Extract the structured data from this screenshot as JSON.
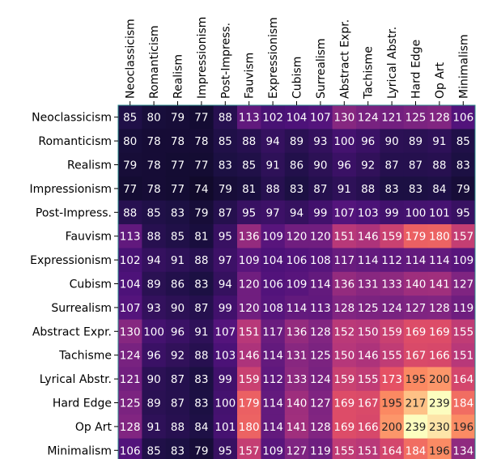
{
  "chart_data": {
    "type": "heatmap",
    "x_labels": [
      "Neoclassicism",
      "Romanticism",
      "Realism",
      "Impressionism",
      "Post-Impress.",
      "Fauvism",
      "Expressionism",
      "Cubism",
      "Surrealism",
      "Abstract Expr.",
      "Tachisme",
      "Lyrical Abstr.",
      "Hard Edge",
      "Op Art",
      "Minimalism"
    ],
    "y_labels": [
      "Neoclassicism",
      "Romanticism",
      "Realism",
      "Impressionism",
      "Post-Impress.",
      "Fauvism",
      "Expressionism",
      "Cubism",
      "Surrealism",
      "Abstract Expr.",
      "Tachisme",
      "Lyrical Abstr.",
      "Hard Edge",
      "Op Art",
      "Minimalism"
    ],
    "values": [
      [
        85,
        80,
        79,
        77,
        88,
        113,
        102,
        104,
        107,
        130,
        124,
        121,
        125,
        128,
        106
      ],
      [
        80,
        78,
        78,
        78,
        85,
        88,
        94,
        89,
        93,
        100,
        96,
        90,
        89,
        91,
        85
      ],
      [
        79,
        78,
        77,
        77,
        83,
        85,
        91,
        86,
        90,
        96,
        92,
        87,
        87,
        88,
        83
      ],
      [
        77,
        78,
        77,
        74,
        79,
        81,
        88,
        83,
        87,
        91,
        88,
        83,
        83,
        84,
        79
      ],
      [
        88,
        85,
        83,
        79,
        87,
        95,
        97,
        94,
        99,
        107,
        103,
        99,
        100,
        101,
        95
      ],
      [
        113,
        88,
        85,
        81,
        95,
        136,
        109,
        120,
        120,
        151,
        146,
        159,
        179,
        180,
        157
      ],
      [
        102,
        94,
        91,
        88,
        97,
        109,
        104,
        106,
        108,
        117,
        114,
        112,
        114,
        114,
        109
      ],
      [
        104,
        89,
        86,
        83,
        94,
        120,
        106,
        109,
        114,
        136,
        131,
        133,
        140,
        141,
        127
      ],
      [
        107,
        93,
        90,
        87,
        99,
        120,
        108,
        114,
        113,
        128,
        125,
        124,
        127,
        128,
        119
      ],
      [
        130,
        100,
        96,
        91,
        107,
        151,
        117,
        136,
        128,
        152,
        150,
        159,
        169,
        169,
        155
      ],
      [
        124,
        96,
        92,
        88,
        103,
        146,
        114,
        131,
        125,
        150,
        146,
        155,
        167,
        166,
        151
      ],
      [
        121,
        90,
        87,
        83,
        99,
        159,
        112,
        133,
        124,
        159,
        155,
        173,
        195,
        200,
        164
      ],
      [
        125,
        89,
        87,
        83,
        100,
        179,
        114,
        140,
        127,
        169,
        167,
        195,
        217,
        239,
        184
      ],
      [
        128,
        91,
        88,
        84,
        101,
        180,
        114,
        141,
        128,
        169,
        166,
        200,
        239,
        230,
        196
      ],
      [
        106,
        85,
        83,
        79,
        95,
        157,
        109,
        127,
        119,
        155,
        151,
        164,
        184,
        196,
        134
      ]
    ],
    "colormap": "magma",
    "value_range": [
      74,
      239
    ],
    "grid": false
  }
}
